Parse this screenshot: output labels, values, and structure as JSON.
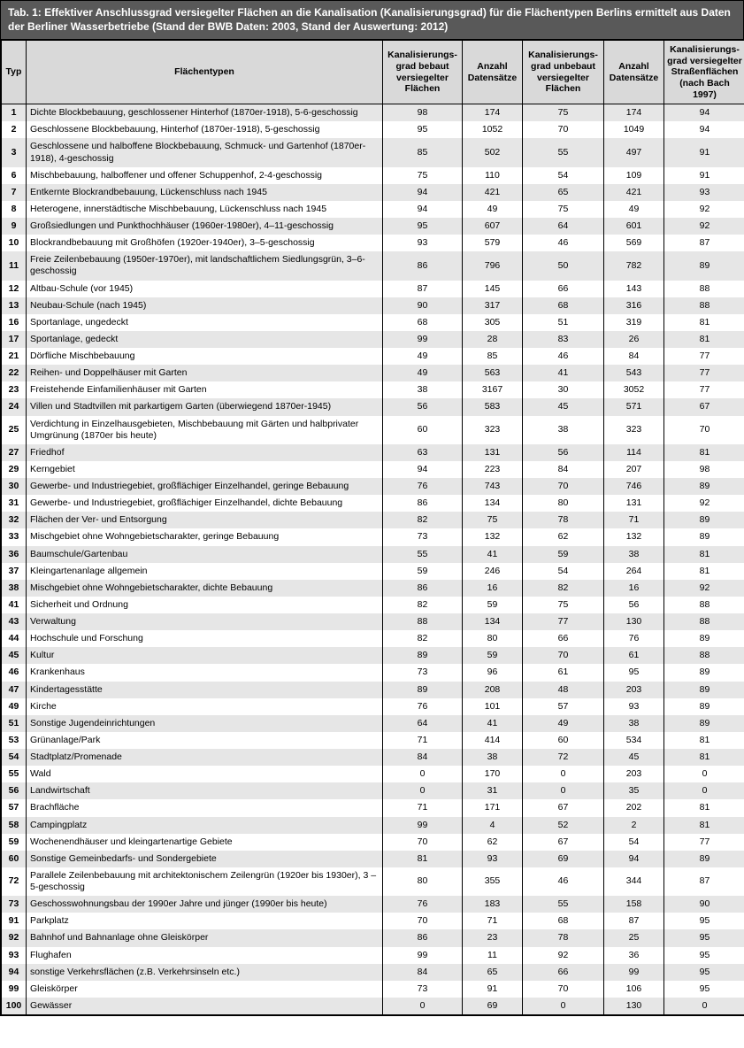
{
  "title": "Tab. 1: Effektiver Anschlussgrad versiegelter Flächen an die Kanalisation (Kanalisierungsgrad) für die Flächentypen Berlins ermittelt aus Daten der Berliner Wasserbetriebe (Stand der BWB Daten: 2003, Stand der Auswertung: 2012)",
  "columns": [
    "Typ",
    "Flächentypen",
    "Kanalisierungs-grad bebaut versiegelter Flächen",
    "Anzahl Datensätze",
    "Kanalisierungs-grad unbebaut versiegelter Flächen",
    "Anzahl Datensätze",
    "Kanalisierungs-grad versiegelter Straßenflächen (nach Bach 1997)"
  ],
  "rows": [
    [
      "1",
      "Dichte Blockbebauung, geschlossener Hinterhof (1870er-1918), 5-6-geschossig",
      "98",
      "174",
      "75",
      "174",
      "94"
    ],
    [
      "2",
      "Geschlossene Blockbebauung, Hinterhof (1870er-1918), 5-geschossig",
      "95",
      "1052",
      "70",
      "1049",
      "94"
    ],
    [
      "3",
      "Geschlossene und halboffene Blockbebauung, Schmuck- und Gartenhof (1870er-1918), 4-geschossig",
      "85",
      "502",
      "55",
      "497",
      "91"
    ],
    [
      "6",
      "Mischbebauung, halboffener und offener Schuppenhof, 2-4-geschossig",
      "75",
      "110",
      "54",
      "109",
      "91"
    ],
    [
      "7",
      "Entkernte Blockrandbebauung, Lückenschluss nach 1945",
      "94",
      "421",
      "65",
      "421",
      "93"
    ],
    [
      "8",
      "Heterogene, innerstädtische Mischbebauung, Lückenschluss nach 1945",
      "94",
      "49",
      "75",
      "49",
      "92"
    ],
    [
      "9",
      "Großsiedlungen und Punkthochhäuser (1960er-1980er), 4–11-geschossig",
      "95",
      "607",
      "64",
      "601",
      "92"
    ],
    [
      "10",
      "Blockrandbebauung mit Großhöfen (1920er-1940er), 3–5-geschossig",
      "93",
      "579",
      "46",
      "569",
      "87"
    ],
    [
      "11",
      "Freie Zeilenbebauung (1950er-1970er), mit landschaftlichem Siedlungsgrün, 3–6-geschossig",
      "86",
      "796",
      "50",
      "782",
      "89"
    ],
    [
      "12",
      "Altbau-Schule (vor 1945)",
      "87",
      "145",
      "66",
      "143",
      "88"
    ],
    [
      "13",
      "Neubau-Schule (nach 1945)",
      "90",
      "317",
      "68",
      "316",
      "88"
    ],
    [
      "16",
      "Sportanlage, ungedeckt",
      "68",
      "305",
      "51",
      "319",
      "81"
    ],
    [
      "17",
      "Sportanlage, gedeckt",
      "99",
      "28",
      "83",
      "26",
      "81"
    ],
    [
      "21",
      "Dörfliche Mischbebauung",
      "49",
      "85",
      "46",
      "84",
      "77"
    ],
    [
      "22",
      "Reihen- und Doppelhäuser mit Garten",
      "49",
      "563",
      "41",
      "543",
      "77"
    ],
    [
      "23",
      "Freistehende Einfamilienhäuser mit Garten",
      "38",
      "3167",
      "30",
      "3052",
      "77"
    ],
    [
      "24",
      "Villen und Stadtvillen mit parkartigem Garten (überwiegend 1870er-1945)",
      "56",
      "583",
      "45",
      "571",
      "67"
    ],
    [
      "25",
      "Verdichtung in Einzelhausgebieten, Mischbebauung mit Gärten und halbprivater Umgrünung (1870er bis heute)",
      "60",
      "323",
      "38",
      "323",
      "70"
    ],
    [
      "27",
      "Friedhof",
      "63",
      "131",
      "56",
      "114",
      "81"
    ],
    [
      "29",
      "Kerngebiet",
      "94",
      "223",
      "84",
      "207",
      "98"
    ],
    [
      "30",
      "Gewerbe- und Industriegebiet, großflächiger Einzelhandel, geringe Bebauung",
      "76",
      "743",
      "70",
      "746",
      "89"
    ],
    [
      "31",
      "Gewerbe- und Industriegebiet, großflächiger Einzelhandel, dichte Bebauung",
      "86",
      "134",
      "80",
      "131",
      "92"
    ],
    [
      "32",
      "Flächen der Ver- und Entsorgung",
      "82",
      "75",
      "78",
      "71",
      "89"
    ],
    [
      "33",
      "Mischgebiet ohne Wohngebietscharakter, geringe Bebauung",
      "73",
      "132",
      "62",
      "132",
      "89"
    ],
    [
      "36",
      "Baumschule/Gartenbau",
      "55",
      "41",
      "59",
      "38",
      "81"
    ],
    [
      "37",
      "Kleingartenanlage allgemein",
      "59",
      "246",
      "54",
      "264",
      "81"
    ],
    [
      "38",
      "Mischgebiet ohne Wohngebietscharakter, dichte Bebauung",
      "86",
      "16",
      "82",
      "16",
      "92"
    ],
    [
      "41",
      "Sicherheit und Ordnung",
      "82",
      "59",
      "75",
      "56",
      "88"
    ],
    [
      "43",
      "Verwaltung",
      "88",
      "134",
      "77",
      "130",
      "88"
    ],
    [
      "44",
      "Hochschule und Forschung",
      "82",
      "80",
      "66",
      "76",
      "89"
    ],
    [
      "45",
      "Kultur",
      "89",
      "59",
      "70",
      "61",
      "88"
    ],
    [
      "46",
      "Krankenhaus",
      "73",
      "96",
      "61",
      "95",
      "89"
    ],
    [
      "47",
      "Kindertagesstätte",
      "89",
      "208",
      "48",
      "203",
      "89"
    ],
    [
      "49",
      "Kirche",
      "76",
      "101",
      "57",
      "93",
      "89"
    ],
    [
      "51",
      "Sonstige Jugendeinrichtungen",
      "64",
      "41",
      "49",
      "38",
      "89"
    ],
    [
      "53",
      "Grünanlage/Park",
      "71",
      "414",
      "60",
      "534",
      "81"
    ],
    [
      "54",
      "Stadtplatz/Promenade",
      "84",
      "38",
      "72",
      "45",
      "81"
    ],
    [
      "55",
      "Wald",
      "0",
      "170",
      "0",
      "203",
      "0"
    ],
    [
      "56",
      "Landwirtschaft",
      "0",
      "31",
      "0",
      "35",
      "0"
    ],
    [
      "57",
      "Brachfläche",
      "71",
      "171",
      "67",
      "202",
      "81"
    ],
    [
      "58",
      "Campingplatz",
      "99",
      "4",
      "52",
      "2",
      "81"
    ],
    [
      "59",
      "Wochenendhäuser und kleingartenartige Gebiete",
      "70",
      "62",
      "67",
      "54",
      "77"
    ],
    [
      "60",
      "Sonstige Gemeinbedarfs- und Sondergebiete",
      "81",
      "93",
      "69",
      "94",
      "89"
    ],
    [
      "72",
      "Parallele Zeilenbebauung mit architektonischem Zeilengrün (1920er bis 1930er), 3 – 5-geschossig",
      "80",
      "355",
      "46",
      "344",
      "87"
    ],
    [
      "73",
      "Geschosswohnungsbau der 1990er Jahre und jünger (1990er bis heute)",
      "76",
      "183",
      "55",
      "158",
      "90"
    ],
    [
      "91",
      "Parkplatz",
      "70",
      "71",
      "68",
      "87",
      "95"
    ],
    [
      "92",
      "Bahnhof und Bahnanlage ohne Gleiskörper",
      "86",
      "23",
      "78",
      "25",
      "95"
    ],
    [
      "93",
      "Flughafen",
      "99",
      "11",
      "92",
      "36",
      "95"
    ],
    [
      "94",
      "sonstige Verkehrsflächen (z.B. Verkehrsinseln etc.)",
      "84",
      "65",
      "66",
      "99",
      "95"
    ],
    [
      "99",
      "Gleiskörper",
      "73",
      "91",
      "70",
      "106",
      "95"
    ],
    [
      "100",
      "Gewässer",
      "0",
      "69",
      "0",
      "130",
      "0"
    ]
  ],
  "style": {
    "title_bg": "#595959",
    "title_color": "#ffffff",
    "header_bg": "#d9d9d9",
    "row_odd_bg": "#e6e6e6",
    "row_even_bg": "#ffffff",
    "border_color": "#000000",
    "font_family": "Arial",
    "title_fontsize": 12,
    "cell_fontsize": 10.5
  }
}
